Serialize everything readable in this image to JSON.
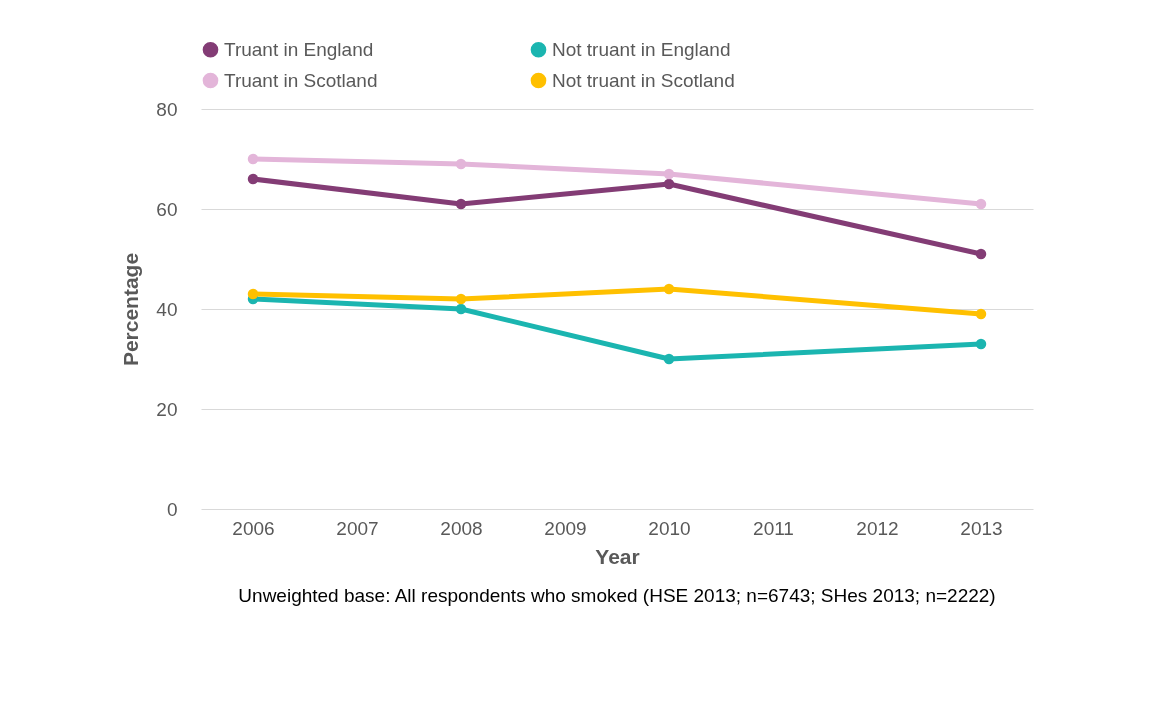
{
  "chart_data": {
    "type": "line",
    "xlabel": "Year",
    "ylabel": "Percentage",
    "x": [
      2006,
      2008,
      2010,
      2013
    ],
    "series": [
      {
        "name": "Truant in England",
        "color": "#833c75",
        "values": [
          66,
          61,
          65,
          51
        ]
      },
      {
        "name": "Not truant in England",
        "color": "#1bb5b0",
        "values": [
          42,
          40,
          30,
          33
        ]
      },
      {
        "name": "Truant in Scotland",
        "color": "#e3b5d9",
        "values": [
          70,
          69,
          67,
          61
        ]
      },
      {
        "name": "Not truant in Scotland",
        "color": "#ffc000",
        "values": [
          43,
          42,
          44,
          39
        ]
      }
    ],
    "xlim": [
      2005.5,
      2013.5
    ],
    "xticks": [
      2006,
      2007,
      2008,
      2009,
      2010,
      2011,
      2012,
      2013
    ],
    "ylim": [
      0,
      80
    ],
    "yticks": [
      0,
      20,
      40,
      60,
      80
    ],
    "grid": "y",
    "legend": "top",
    "marker": "circle",
    "line_style": "solid",
    "annotations": [
      "Unweighted base: All respondents who smoked (HSE 2013; n=6743; SHes 2013; n=2222)"
    ]
  }
}
